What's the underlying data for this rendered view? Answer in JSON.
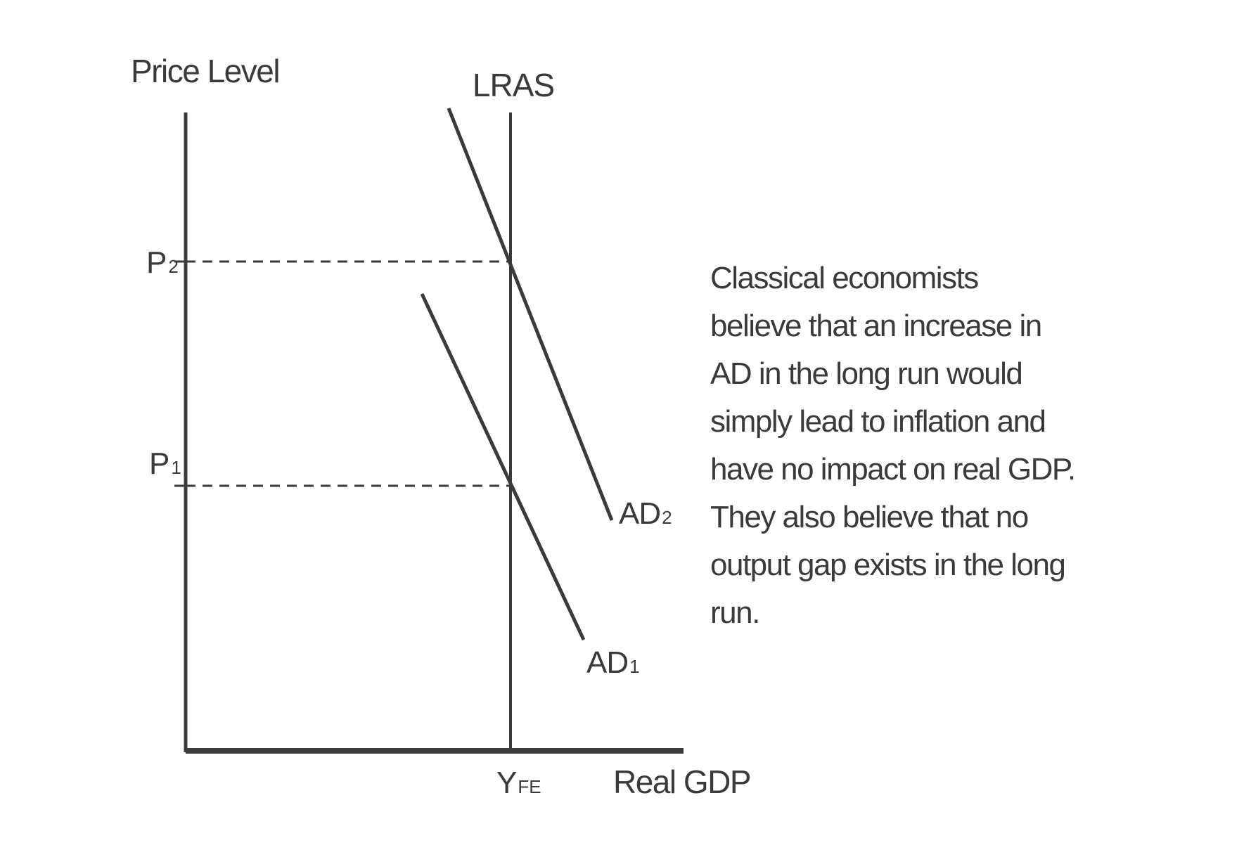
{
  "diagram": {
    "y_axis_label": "Price Level",
    "x_axis_label": "Real GDP",
    "lras_label": "LRAS",
    "p2": {
      "main": "P",
      "sub": "2"
    },
    "p1": {
      "main": "P",
      "sub": "1"
    },
    "yfe": {
      "main": "Y",
      "sub": "FE"
    },
    "ad2": {
      "main": "AD",
      "sub": "2"
    },
    "ad1": {
      "main": "AD",
      "sub": "1"
    }
  },
  "explanation": "Classical economists believe that an increase in AD in the long run would simply lead to inflation and have no impact on real GDP. They also believe that no output gap exists in the long run.",
  "colors": {
    "ink": "#3a3a3a",
    "background": "#ffffff"
  }
}
